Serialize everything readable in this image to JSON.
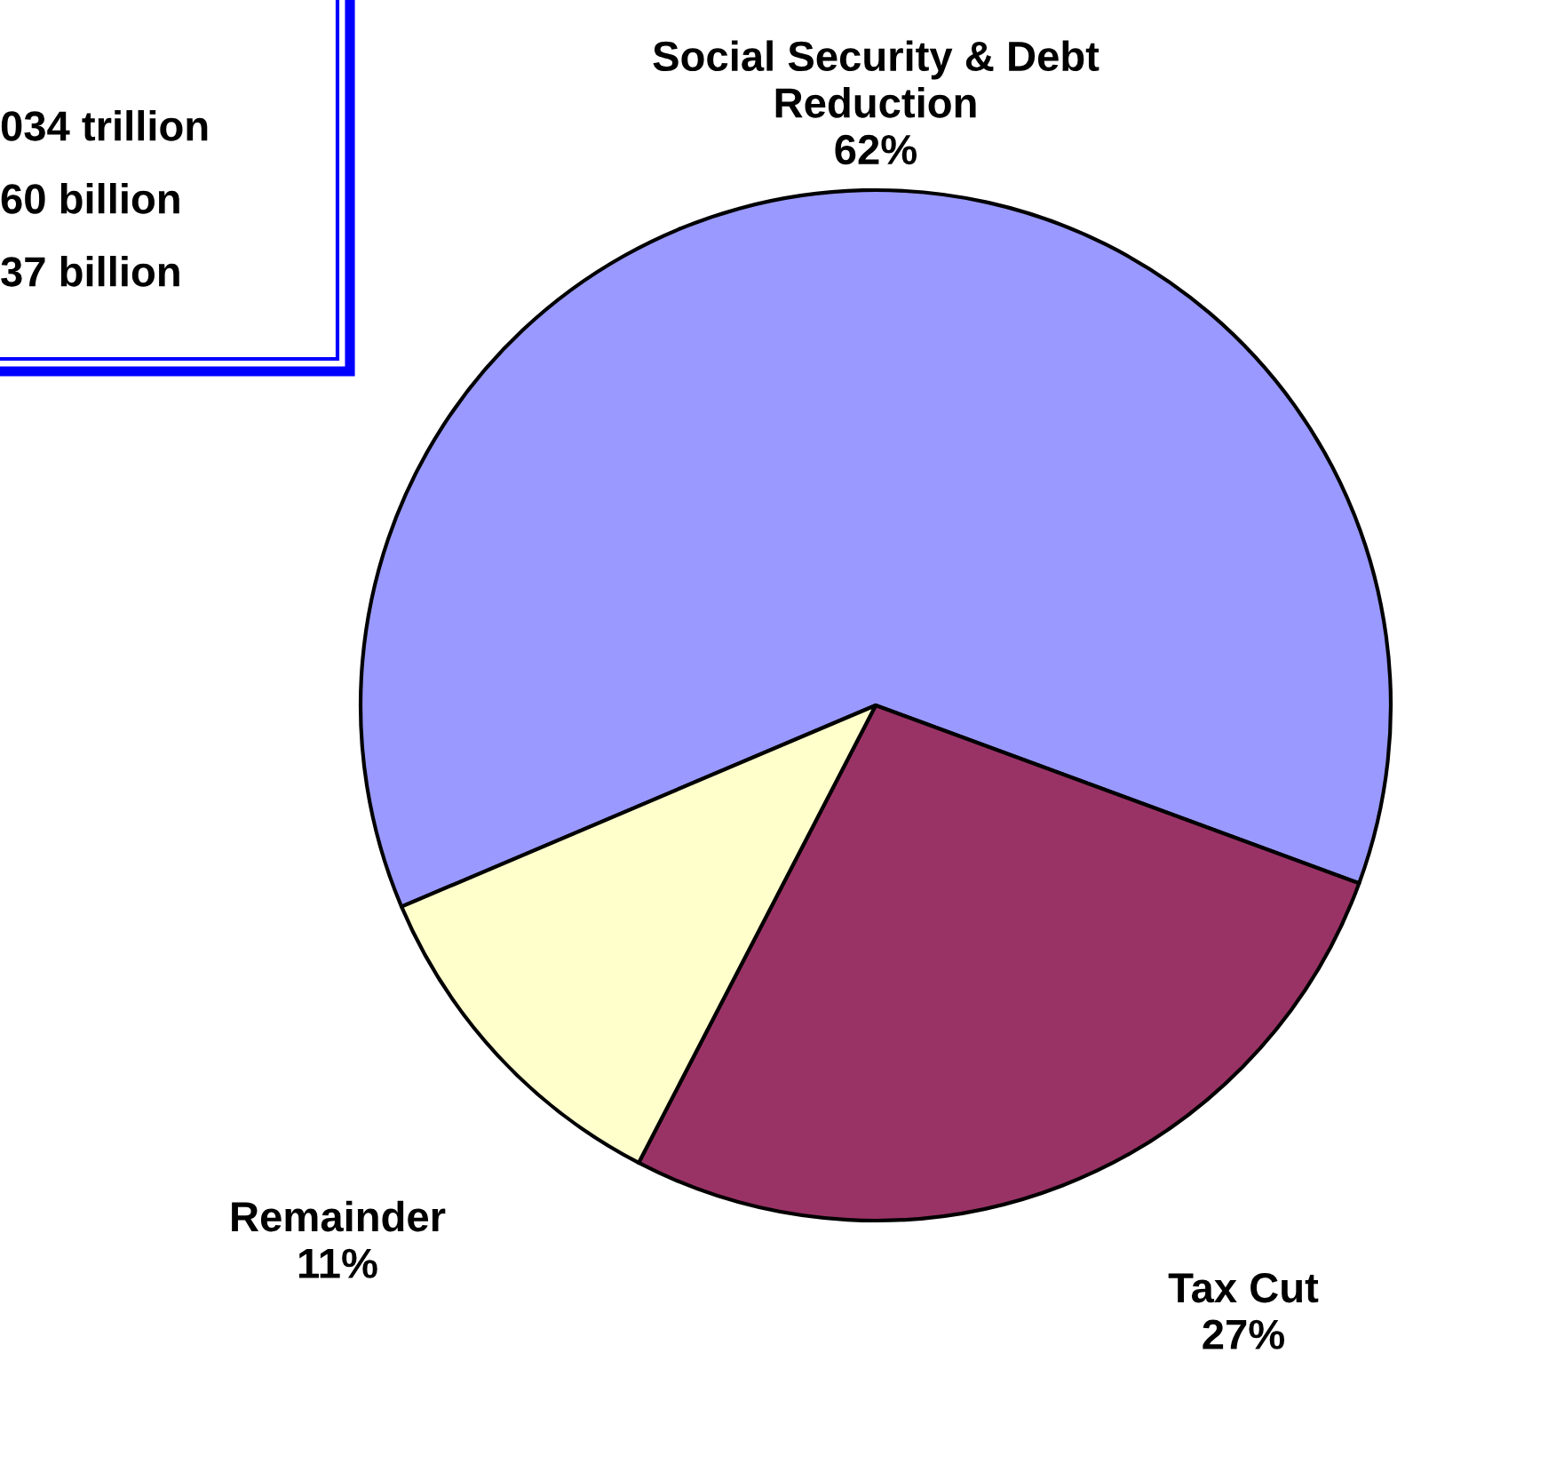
{
  "chart_data": {
    "type": "pie",
    "categories": [
      "Social Security & Debt Reduction",
      "Tax Cut",
      "Remainder"
    ],
    "values": [
      62,
      27,
      11
    ],
    "value_labels": [
      "62%",
      "27%",
      "11%"
    ],
    "colors": [
      "#9999ff",
      "#993366",
      "#ffffcc"
    ],
    "annotations": [
      "034 trillion",
      "60 billion",
      "37 billion"
    ]
  }
}
